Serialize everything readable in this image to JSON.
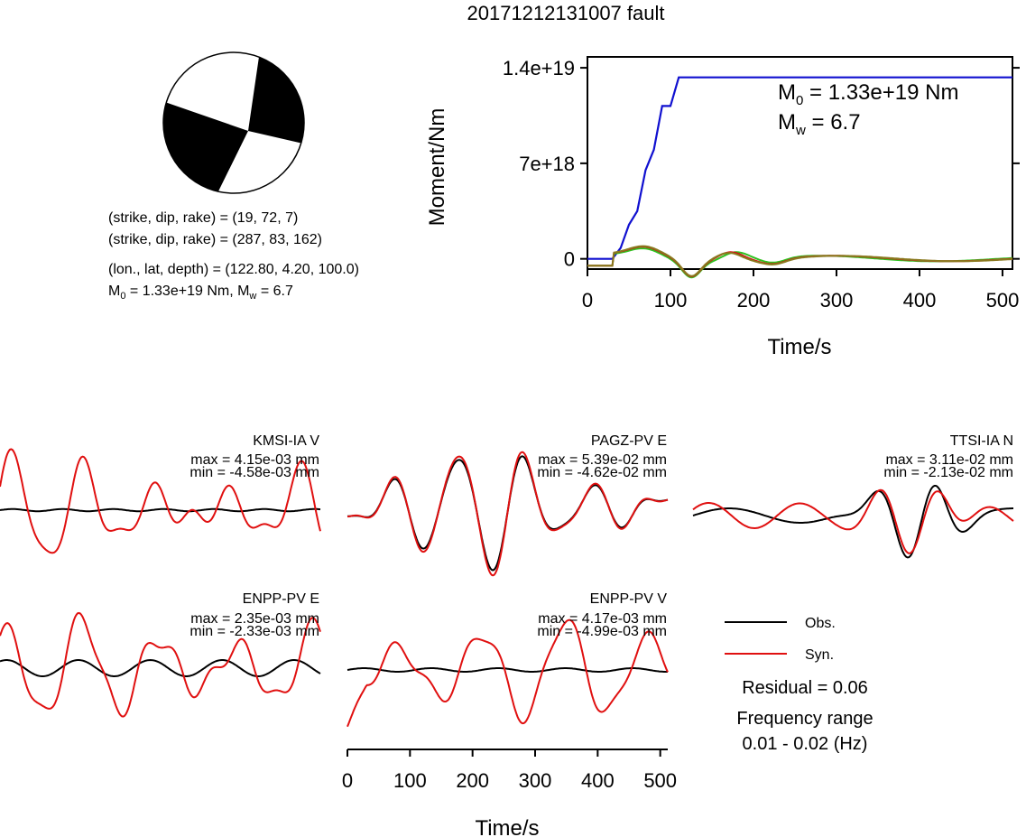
{
  "title": "20171212131007 fault",
  "mechanism": {
    "line1": "(strike, dip, rake) = (19, 72, 7)",
    "line2": "(strike, dip, rake) = (287, 83, 162)",
    "line3": "(lon., lat, depth) = (122.80, 4.20, 100.0)",
    "m0_label": "M",
    "m0_sub": "0",
    "m0_rest": " = 1.33e+19 Nm, M",
    "mw_sub": "w",
    "mw_rest": " = 6.7"
  },
  "moment_plot": {
    "ylabel": "Moment/Nm",
    "xlabel": "Time/s",
    "y_tick_labels": [
      "1.4e+19",
      "7e+18",
      "0"
    ],
    "y_tick_values": [
      1.4e+19,
      7e+18,
      0
    ],
    "x_tick_labels": [
      "0",
      "100",
      "200",
      "300",
      "400",
      "500"
    ],
    "x_tick_values": [
      0,
      100,
      200,
      300,
      400,
      500
    ],
    "xlim": [
      0,
      512
    ],
    "ylim": [
      -7.5e+17,
      1.48e+19
    ],
    "annotation_m0": "M",
    "annotation_m0_sub": "0",
    "annotation_m0_rest": " = 1.33e+19 Nm",
    "annotation_mw": "M",
    "annotation_mw_sub": "w",
    "annotation_mw_rest": " = 6.7"
  },
  "waveform_axis": {
    "xlabel": "Time/s",
    "x_tick_labels": [
      "0",
      "100",
      "200",
      "300",
      "400",
      "500"
    ],
    "x_tick_values": [
      0,
      100,
      200,
      300,
      400,
      500
    ],
    "xlim": [
      0,
      512
    ]
  },
  "stations": [
    {
      "name": "KMSI-IA V",
      "max": "max = 4.15e-03 mm",
      "min": "min = -4.58e-03 mm"
    },
    {
      "name": "PAGZ-PV E",
      "max": "max = 5.39e-02 mm",
      "min": "min = -4.62e-02 mm"
    },
    {
      "name": "TTSI-IA N",
      "max": "max = 3.11e-02 mm",
      "min": "min = -2.13e-02 mm"
    },
    {
      "name": "ENPP-PV E",
      "max": "max = 2.35e-03 mm",
      "min": "min = -2.33e-03 mm"
    },
    {
      "name": "ENPP-PV V",
      "max": "max = 4.17e-03 mm",
      "min": "min = -4.99e-03 mm"
    }
  ],
  "legend": {
    "obs": "Obs.",
    "syn": "Syn.",
    "residual": "Residual = 0.06",
    "freq_label": "Frequency range",
    "freq_value": "0.01 - 0.02 (Hz)"
  },
  "colors": {
    "observed": "#000000",
    "synthetic": "#e01010",
    "cumulative_moment": "#1010d0",
    "moment_rate_green": "#30c020",
    "moment_rate_red": "#d01010",
    "moment_rate_olive": "#8a7a20"
  },
  "chart_data": [
    {
      "type": "line",
      "xlabel": "Time/s",
      "ylabel": "Moment/Nm",
      "xlim": [
        0,
        512
      ],
      "ylim": [
        -7.5e+17,
        1.48e+19
      ],
      "series": [
        {
          "x": [
            0,
            30,
            40,
            50,
            60,
            65,
            70,
            80,
            90,
            100,
            110,
            200,
            300,
            400,
            512
          ],
          "values": [
            0,
            0,
            8e+17,
            2.5e+18,
            3.5e+18,
            5e+18,
            6.5e+18,
            8e+18,
            1.12e+19,
            1.12e+19,
            1.33e+19,
            1.33e+19,
            1.33e+19,
            1.33e+19,
            1.33e+19
          ]
        }
      ]
    }
  ]
}
